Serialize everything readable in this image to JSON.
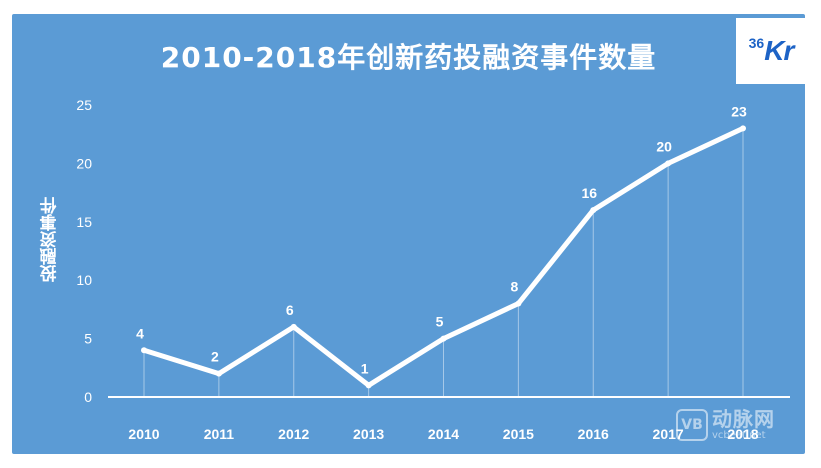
{
  "chart_data": {
    "type": "line",
    "title": "2010-2018年创新药投融资事件数量",
    "xlabel": "",
    "ylabel": "投融资事件",
    "categories": [
      "2010",
      "2011",
      "2012",
      "2013",
      "2014",
      "2015",
      "2016",
      "2017",
      "2018"
    ],
    "values": [
      4,
      2,
      6,
      1,
      5,
      8,
      16,
      20,
      23
    ],
    "ylim": [
      0,
      25
    ],
    "yticks": [
      0,
      5,
      10,
      15,
      20,
      25
    ],
    "grid": false,
    "legend": "none",
    "colors": {
      "background": "#5b9bd5",
      "line": "#ffffff",
      "text": "#ffffff"
    }
  },
  "logo": {
    "sup": "36",
    "main": "Kr",
    "color": "#1d63c6"
  },
  "watermark": {
    "mark": "VB",
    "cn": "动脉网",
    "url": "vcbeat.net"
  }
}
